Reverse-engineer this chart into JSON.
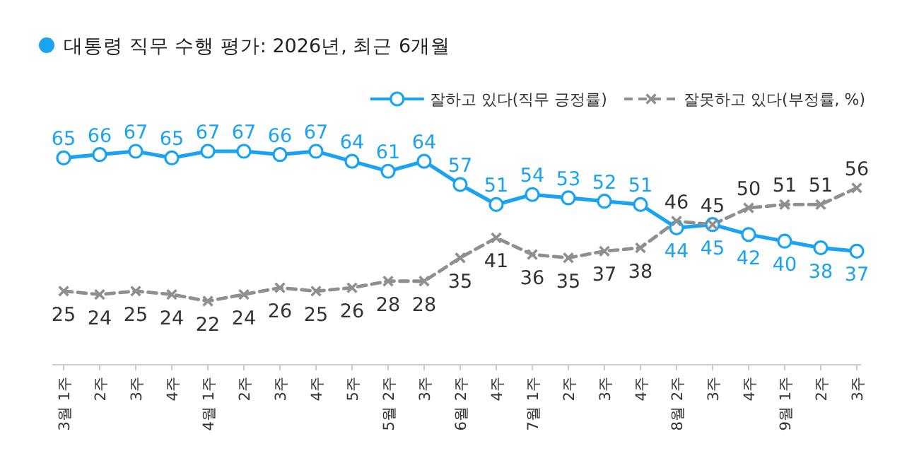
{
  "chart_data": {
    "type": "line",
    "title": "대통령 직무 수행 평가: 2026년, 최근 6개월",
    "categories": [
      "3월 1주",
      "2주",
      "3주",
      "4주",
      "4월 1주",
      "2주",
      "3주",
      "4주",
      "5주",
      "5월 2주",
      "3주",
      "6월 2주",
      "4주",
      "7월 1주",
      "2주",
      "3주",
      "4주",
      "8월 2주",
      "3주",
      "4주",
      "9월 1주",
      "2주",
      "3주"
    ],
    "series": [
      {
        "name": "잘하고 있다(직무 긍정률)",
        "color": "#1aa3f0",
        "marker": "circle",
        "line_style": "solid",
        "values": [
          65,
          66,
          67,
          65,
          67,
          67,
          66,
          67,
          64,
          61,
          64,
          57,
          51,
          54,
          53,
          52,
          51,
          44,
          45,
          42,
          40,
          38,
          37
        ]
      },
      {
        "name": "잘못하고 있다(부정률, %)",
        "color": "#8f8f8f",
        "marker": "cross",
        "line_style": "dashed",
        "values": [
          25,
          24,
          25,
          24,
          22,
          24,
          26,
          25,
          26,
          28,
          28,
          35,
          41,
          36,
          35,
          37,
          38,
          46,
          45,
          50,
          51,
          51,
          56
        ]
      }
    ],
    "data_labels": true,
    "grid": false,
    "legend": "top right",
    "tick_labels": "x"
  }
}
